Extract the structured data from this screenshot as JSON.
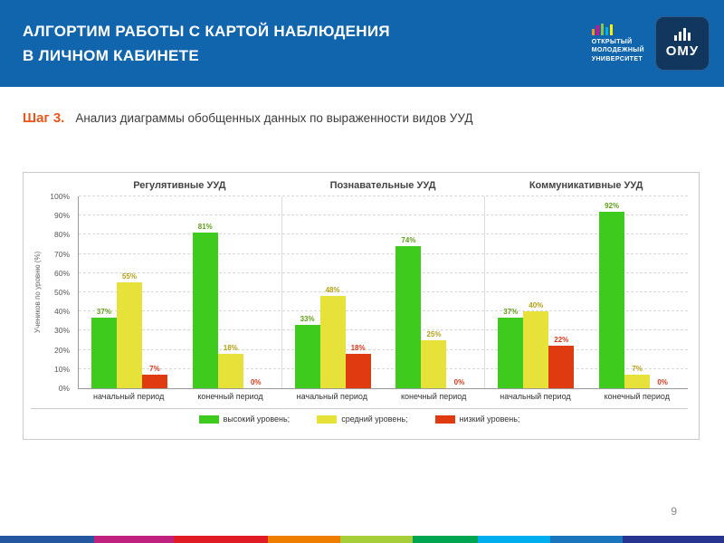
{
  "slide": {
    "title_line1": "АЛГОРТИМ РАБОТЫ С КАРТОЙ НАБЛЮДЕНИЯ",
    "title_line2": "В ЛИЧНОМ КАБИНЕТЕ",
    "page_number": "9"
  },
  "logo": {
    "org_line1": "ОТКРЫТЫЙ",
    "org_line2": "МОЛОДЕЖНЫЙ",
    "org_line3": "УНИВЕРСИТЕТ",
    "brand": "ОМУ"
  },
  "step": {
    "label": "Шаг 3.",
    "text": "Анализ диаграммы обобщенных данных по выраженности видов УУД"
  },
  "chart_data": {
    "type": "bar",
    "ylabel": "Учеников по уровню (%)",
    "ylim": [
      0,
      100
    ],
    "ytick_step": 10,
    "grid": true,
    "legend_position": "bottom",
    "panels": [
      {
        "title": "Регулятивные УУД",
        "groups": [
          {
            "label": "начальный период",
            "values": [
              37,
              55,
              7
            ]
          },
          {
            "label": "конечный период",
            "values": [
              81,
              18,
              0
            ]
          }
        ]
      },
      {
        "title": "Познавательные УУД",
        "groups": [
          {
            "label": "начальный период",
            "values": [
              33,
              48,
              18
            ]
          },
          {
            "label": "конечный период",
            "values": [
              74,
              25,
              0
            ]
          }
        ]
      },
      {
        "title": "Коммуникативные УУД",
        "groups": [
          {
            "label": "начальный период",
            "values": [
              37,
              40,
              22
            ]
          },
          {
            "label": "конечный период",
            "values": [
              92,
              7,
              0
            ]
          }
        ]
      }
    ],
    "series_names": [
      "высокий уровень;",
      "средний уровень;",
      "низкий уровень;"
    ],
    "series_colors": [
      "#3ecb1e",
      "#e6e23a",
      "#e03a10"
    ],
    "label_colors": [
      "#5f9c1a",
      "#b2a018",
      "#d2391b"
    ],
    "accent_colors": {
      "header_blue": "#1165ad",
      "step_orange": "#e8561b"
    }
  }
}
